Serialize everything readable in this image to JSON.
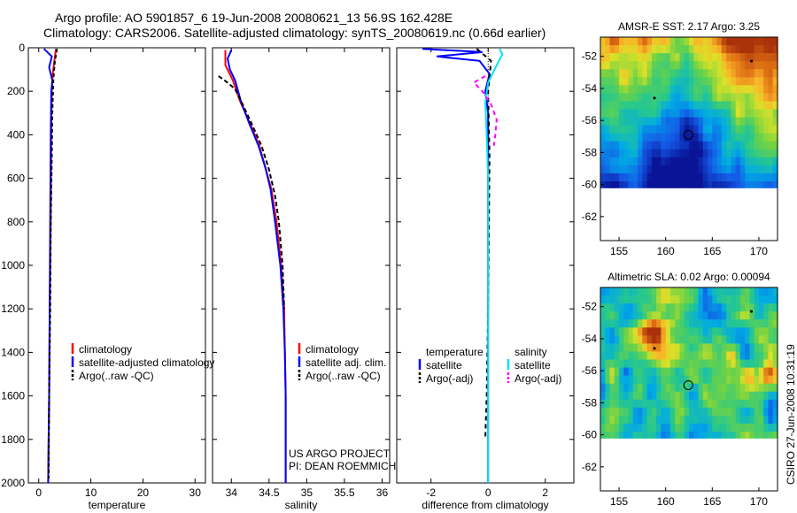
{
  "title": {
    "line1": "Argo profile: AO 5901857_6 19-Jun-2008 20080621_13 56.9S 162.428E",
    "line2": "Climatology: CARS2006. Satellite-adjusted climatology: synTS_20080619.nc (0.66d earlier)"
  },
  "side_stamp": "CSIRO 27-Jun-2008 10:31:19",
  "project_note": {
    "line1": "US ARGO PROJECT",
    "line2": "PI: DEAN ROEMMICH"
  },
  "colors": {
    "climatology": "#ff0000",
    "satellite": "#0000ff",
    "argo": "#000000",
    "sat_salinity": "#00e5ee",
    "argo_salinity": "#ff00ff"
  },
  "chart_data": [
    {
      "type": "line",
      "id": "temperature",
      "xlabel": "temperature",
      "ylabel": "",
      "xlim": [
        -2,
        32
      ],
      "ylim": [
        2000,
        0
      ],
      "xticks": [
        0,
        10,
        20,
        30
      ],
      "yticks": [
        0,
        200,
        400,
        600,
        800,
        1000,
        1200,
        1400,
        1600,
        1800,
        2000
      ],
      "legend": [
        "climatology",
        "satellite-adjusted climatology",
        "Argo(..raw -QC)"
      ],
      "series": [
        {
          "name": "climatology",
          "color": "#ff0000",
          "dash": "",
          "points": [
            [
              3.3,
              5
            ],
            [
              3.0,
              60
            ],
            [
              2.7,
              120
            ],
            [
              2.5,
              200
            ],
            [
              2.4,
              400
            ],
            [
              2.3,
              800
            ],
            [
              2.1,
              1200
            ],
            [
              2.0,
              1600
            ],
            [
              1.9,
              1800
            ],
            [
              1.8,
              2000
            ]
          ]
        },
        {
          "name": "satellite-adjusted climatology",
          "color": "#0000ff",
          "dash": "",
          "points": [
            [
              1.0,
              5
            ],
            [
              2.5,
              40
            ],
            [
              2.0,
              90
            ],
            [
              2.6,
              150
            ],
            [
              2.4,
              200
            ],
            [
              2.3,
              400
            ],
            [
              2.2,
              800
            ],
            [
              2.1,
              1200
            ],
            [
              2.0,
              1600
            ],
            [
              1.9,
              1800
            ],
            [
              1.8,
              2000
            ]
          ]
        },
        {
          "name": "Argo(..raw -QC)",
          "color": "#000000",
          "dash": "4,3",
          "points": [
            [
              3.5,
              5
            ],
            [
              3.1,
              60
            ],
            [
              2.8,
              150
            ],
            [
              2.6,
              300
            ],
            [
              2.5,
              500
            ],
            [
              2.3,
              800
            ],
            [
              2.2,
              1200
            ],
            [
              2.0,
              1600
            ],
            [
              1.9,
              1980
            ]
          ]
        }
      ]
    },
    {
      "type": "line",
      "id": "salinity",
      "xlabel": "salinity",
      "ylabel": "",
      "xlim": [
        33.75,
        36.1
      ],
      "ylim": [
        2000,
        0
      ],
      "xticks": [
        34,
        34.5,
        35,
        35.5,
        36
      ],
      "yticks": [
        0,
        200,
        400,
        600,
        800,
        1000,
        1200,
        1400,
        1600,
        1800,
        2000
      ],
      "legend": [
        "climatology",
        "satellite adj. clim.",
        "Argo(..raw -QC)"
      ],
      "series": [
        {
          "name": "climatology",
          "color": "#ff0000",
          "dash": "",
          "points": [
            [
              33.92,
              10
            ],
            [
              33.92,
              80
            ],
            [
              34.02,
              150
            ],
            [
              34.12,
              250
            ],
            [
              34.25,
              350
            ],
            [
              34.37,
              450
            ],
            [
              34.45,
              550
            ],
            [
              34.53,
              650
            ],
            [
              34.6,
              800
            ],
            [
              34.66,
              1000
            ],
            [
              34.7,
              1200
            ],
            [
              34.71,
              1400
            ],
            [
              34.72,
              1600
            ],
            [
              34.72,
              1800
            ],
            [
              34.72,
              2000
            ]
          ]
        },
        {
          "name": "satellite adj. clim.",
          "color": "#0000ff",
          "dash": "",
          "points": [
            [
              34.0,
              10
            ],
            [
              33.95,
              50
            ],
            [
              33.98,
              100
            ],
            [
              34.05,
              150
            ],
            [
              34.13,
              250
            ],
            [
              34.24,
              350
            ],
            [
              34.36,
              450
            ],
            [
              34.45,
              550
            ],
            [
              34.52,
              650
            ],
            [
              34.58,
              800
            ],
            [
              34.65,
              1000
            ],
            [
              34.69,
              1200
            ],
            [
              34.71,
              1400
            ],
            [
              34.72,
              1600
            ],
            [
              34.72,
              1800
            ],
            [
              34.72,
              2000
            ]
          ]
        },
        {
          "name": "Argo(..raw -QC)",
          "color": "#000000",
          "dash": "5,3",
          "points": [
            [
              33.83,
              130
            ],
            [
              33.95,
              160
            ],
            [
              34.05,
              190
            ],
            [
              34.15,
              260
            ],
            [
              34.27,
              350
            ],
            [
              34.4,
              450
            ],
            [
              34.5,
              560
            ],
            [
              34.58,
              680
            ],
            [
              34.63,
              800
            ],
            [
              34.68,
              1000
            ],
            [
              34.7,
              1200
            ]
          ]
        }
      ]
    },
    {
      "type": "line",
      "id": "difference",
      "xlabel": "difference from climatology",
      "ylabel": "",
      "xlim": [
        -3.2,
        3.0
      ],
      "ylim": [
        2000,
        0
      ],
      "xticks": [
        -2,
        0,
        2
      ],
      "yticks": [
        0,
        200,
        400,
        600,
        800,
        1000,
        1200,
        1400,
        1600,
        1800,
        2000
      ],
      "legend_groups": [
        {
          "heading": "temperature",
          "items": [
            "satellite",
            "Argo(-adj)"
          ]
        },
        {
          "heading": "salinity",
          "items": [
            "satellite",
            "Argo(-adj)"
          ]
        }
      ],
      "series": [
        {
          "name": "temperature satellite",
          "color": "#0000ff",
          "dash": "",
          "points": [
            [
              -2.3,
              5
            ],
            [
              -0.2,
              20
            ],
            [
              -1.8,
              40
            ],
            [
              -0.3,
              60
            ],
            [
              0.05,
              120
            ],
            [
              -0.1,
              200
            ],
            [
              0.0,
              300
            ],
            [
              0.0,
              800
            ],
            [
              0.0,
              1600
            ],
            [
              0.0,
              2000
            ]
          ]
        },
        {
          "name": "temperature Argo(-adj)",
          "color": "#000000",
          "dash": "5,4",
          "points": [
            [
              -0.4,
              5
            ],
            [
              0.1,
              60
            ],
            [
              0.0,
              200
            ],
            [
              0.05,
              500
            ],
            [
              0.0,
              1200
            ],
            [
              -0.05,
              1600
            ],
            [
              -0.1,
              1800
            ]
          ]
        },
        {
          "name": "salinity satellite",
          "color": "#00e5ee",
          "dash": "",
          "points": [
            [
              0.4,
              5
            ],
            [
              0.5,
              30
            ],
            [
              0.3,
              80
            ],
            [
              0.0,
              160
            ],
            [
              -0.1,
              250
            ],
            [
              -0.05,
              400
            ],
            [
              0.0,
              600
            ],
            [
              0.0,
              1000
            ],
            [
              0.0,
              1500
            ],
            [
              0.0,
              2000
            ]
          ]
        },
        {
          "name": "salinity Argo(-adj)",
          "color": "#ff00ff",
          "dash": "5,4",
          "points": [
            [
              -0.1,
              130
            ],
            [
              -0.5,
              160
            ],
            [
              -0.2,
              200
            ],
            [
              0.1,
              260
            ],
            [
              0.3,
              330
            ],
            [
              0.25,
              400
            ],
            [
              0.2,
              450
            ]
          ]
        }
      ]
    },
    {
      "type": "heatmap",
      "id": "sst_map",
      "title": "AMSR-E SST: 2.17 Argo: 3.25",
      "xlim": [
        153,
        172
      ],
      "ylim": [
        -63.5,
        -50.8
      ],
      "xticks": [
        155,
        160,
        165,
        170
      ],
      "yticks": [
        -52,
        -54,
        -56,
        -58,
        -60,
        -62
      ],
      "data_south_limit": -60.2,
      "argo_location": [
        162.428,
        -56.9
      ],
      "other_markers": [
        [
          158.8,
          -54.6
        ],
        [
          169.2,
          -52.3
        ]
      ],
      "palette": "sst"
    },
    {
      "type": "heatmap",
      "id": "sla_map",
      "title": "Altimetric SLA: 0.02 Argo: 0.00094",
      "xlim": [
        153,
        172
      ],
      "ylim": [
        -63.5,
        -50.8
      ],
      "xticks": [
        155,
        160,
        165,
        170
      ],
      "yticks": [
        -52,
        -54,
        -56,
        -58,
        -60,
        -62
      ],
      "data_south_limit": -60.2,
      "argo_location": [
        162.428,
        -56.9
      ],
      "other_markers": [
        [
          158.8,
          -54.6
        ],
        [
          169.2,
          -52.3
        ]
      ],
      "palette": "sla"
    }
  ]
}
